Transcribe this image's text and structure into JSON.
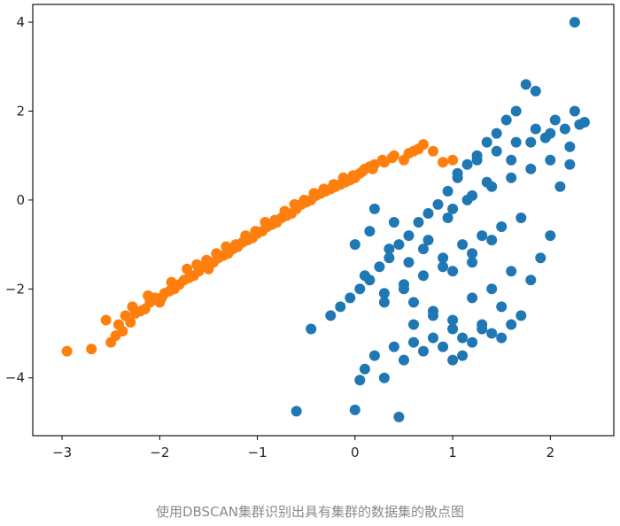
{
  "caption": "使用DBSCAN集群识别出具有集群的数据集的散点图",
  "chart_data": {
    "type": "scatter",
    "title": "",
    "xlabel": "",
    "ylabel": "",
    "xlim": [
      -3.3,
      2.65
    ],
    "ylim": [
      -5.3,
      4.4
    ],
    "xticks": [
      -3,
      -2,
      -1,
      0,
      1,
      2
    ],
    "xtick_labels": [
      "−3",
      "−2",
      "−1",
      "0",
      "1",
      "2"
    ],
    "yticks": [
      4,
      2,
      0,
      -2,
      -4
    ],
    "ytick_labels": [
      "4",
      "2",
      "0",
      "−2",
      "−4"
    ],
    "grid": false,
    "legend": "none",
    "series": [
      {
        "color": "#ff7f0e",
        "x": [
          -2.95,
          -2.7,
          -2.5,
          -2.45,
          -2.38,
          -2.55,
          -2.42,
          -2.3,
          -2.25,
          -2.2,
          -2.15,
          -2.1,
          -2.05,
          -2.0,
          -1.95,
          -1.9,
          -1.85,
          -1.8,
          -1.75,
          -1.7,
          -1.65,
          -1.6,
          -1.55,
          -1.5,
          -1.45,
          -1.4,
          -1.35,
          -1.3,
          -1.25,
          -1.2,
          -1.15,
          -1.1,
          -1.05,
          -1.0,
          -0.95,
          -0.9,
          -0.85,
          -0.8,
          -0.75,
          -0.7,
          -0.65,
          -0.6,
          -0.55,
          -0.5,
          -0.45,
          -0.4,
          -0.35,
          -0.3,
          -0.25,
          -0.2,
          -0.15,
          -0.1,
          -0.05,
          0.0,
          0.05,
          0.1,
          0.15,
          0.2,
          0.3,
          0.4,
          0.5,
          0.6,
          0.7,
          0.8,
          0.9,
          1.0,
          -2.35,
          -2.28,
          -2.12,
          -1.98,
          -1.88,
          -1.72,
          -1.62,
          -1.52,
          -1.42,
          -1.32,
          -1.22,
          -1.12,
          -1.02,
          -0.92,
          -0.82,
          -0.72,
          -0.62,
          -0.52,
          -0.42,
          -0.32,
          -0.22,
          -0.12,
          -0.02,
          0.08,
          0.18,
          0.28,
          0.38,
          0.55,
          0.65
        ],
        "y": [
          -3.4,
          -3.35,
          -3.2,
          -3.05,
          -2.95,
          -2.7,
          -2.8,
          -2.75,
          -2.55,
          -2.5,
          -2.45,
          -2.3,
          -2.2,
          -2.3,
          -2.1,
          -2.05,
          -2.0,
          -1.9,
          -1.8,
          -1.75,
          -1.7,
          -1.6,
          -1.5,
          -1.55,
          -1.4,
          -1.3,
          -1.25,
          -1.2,
          -1.1,
          -1.05,
          -0.95,
          -0.9,
          -0.85,
          -0.75,
          -0.7,
          -0.6,
          -0.55,
          -0.5,
          -0.4,
          -0.35,
          -0.3,
          -0.2,
          -0.1,
          -0.05,
          0.0,
          0.1,
          0.15,
          0.2,
          0.25,
          0.3,
          0.35,
          0.4,
          0.45,
          0.5,
          0.6,
          0.7,
          0.75,
          0.8,
          0.85,
          1.0,
          0.9,
          1.1,
          1.25,
          1.1,
          0.85,
          0.9,
          -2.6,
          -2.4,
          -2.15,
          -2.2,
          -1.85,
          -1.55,
          -1.45,
          -1.35,
          -1.2,
          -1.05,
          -1.0,
          -0.8,
          -0.7,
          -0.5,
          -0.45,
          -0.25,
          -0.1,
          0.0,
          0.15,
          0.25,
          0.35,
          0.5,
          0.55,
          0.65,
          0.7,
          0.9,
          0.95,
          1.05,
          1.15
        ]
      },
      {
        "color": "#1f77b4",
        "x": [
          2.25,
          -0.6,
          0.0,
          0.45,
          -0.45,
          0.05,
          0.3,
          0.1,
          0.2,
          0.4,
          0.5,
          0.6,
          0.7,
          0.8,
          0.9,
          1.0,
          1.1,
          1.2,
          1.3,
          1.4,
          1.5,
          1.6,
          1.7,
          1.8,
          1.9,
          2.0,
          2.1,
          2.2,
          2.3,
          2.35,
          1.75,
          1.85,
          1.65,
          1.55,
          1.45,
          1.35,
          1.25,
          1.15,
          1.05,
          0.95,
          0.85,
          0.75,
          0.65,
          0.55,
          0.45,
          0.35,
          0.25,
          0.15,
          0.05,
          -0.05,
          -0.15,
          -0.25,
          1.0,
          1.2,
          1.4,
          1.6,
          1.8,
          2.0,
          2.2,
          1.1,
          1.3,
          1.5,
          1.7,
          0.9,
          0.7,
          0.5,
          0.3,
          0.6,
          0.8,
          1.0,
          1.2,
          1.4,
          1.6,
          0.4,
          0.2,
          0.0,
          1.05,
          1.25,
          1.45,
          1.65,
          0.75,
          0.95,
          1.15,
          1.35,
          0.55,
          0.35,
          0.15,
          1.85,
          2.05,
          2.25,
          1.95,
          2.15,
          1.0,
          1.1,
          1.3,
          1.5,
          0.8,
          0.6,
          1.2,
          1.4,
          0.9,
          0.7,
          1.0,
          1.2,
          0.5,
          0.3,
          0.1,
          1.6,
          1.8,
          2.0
        ],
        "y": [
          4.0,
          -4.75,
          -4.72,
          -4.88,
          -2.9,
          -4.05,
          -4.0,
          -3.8,
          -3.5,
          -3.3,
          -3.6,
          -3.2,
          -3.4,
          -3.1,
          -3.3,
          -3.6,
          -3.5,
          -3.2,
          -2.9,
          -3.0,
          -3.1,
          -2.8,
          -2.6,
          -1.8,
          -1.3,
          -0.8,
          0.3,
          0.8,
          1.7,
          1.75,
          2.6,
          2.45,
          2.0,
          1.8,
          1.5,
          1.3,
          1.0,
          0.8,
          0.5,
          0.2,
          -0.1,
          -0.3,
          -0.5,
          -0.8,
          -1.0,
          -1.3,
          -1.5,
          -1.8,
          -2.0,
          -2.2,
          -2.4,
          -2.6,
          -0.2,
          0.1,
          0.3,
          0.5,
          0.7,
          0.9,
          1.2,
          -1.0,
          -0.8,
          -0.6,
          -0.4,
          -1.5,
          -1.7,
          -1.9,
          -2.1,
          -2.3,
          -2.5,
          -2.7,
          -2.2,
          -2.0,
          -1.6,
          -0.5,
          -0.2,
          -1.0,
          0.6,
          0.9,
          1.1,
          1.3,
          -0.9,
          -0.4,
          0.0,
          0.4,
          -1.4,
          -1.1,
          -0.7,
          1.6,
          1.8,
          2.0,
          1.4,
          1.6,
          -2.9,
          -3.1,
          -2.8,
          -2.4,
          -2.6,
          -2.8,
          -1.2,
          -0.9,
          -1.3,
          -1.1,
          -1.6,
          -1.4,
          -2.0,
          -2.3,
          -1.7,
          0.9,
          1.3,
          1.5
        ]
      }
    ]
  }
}
